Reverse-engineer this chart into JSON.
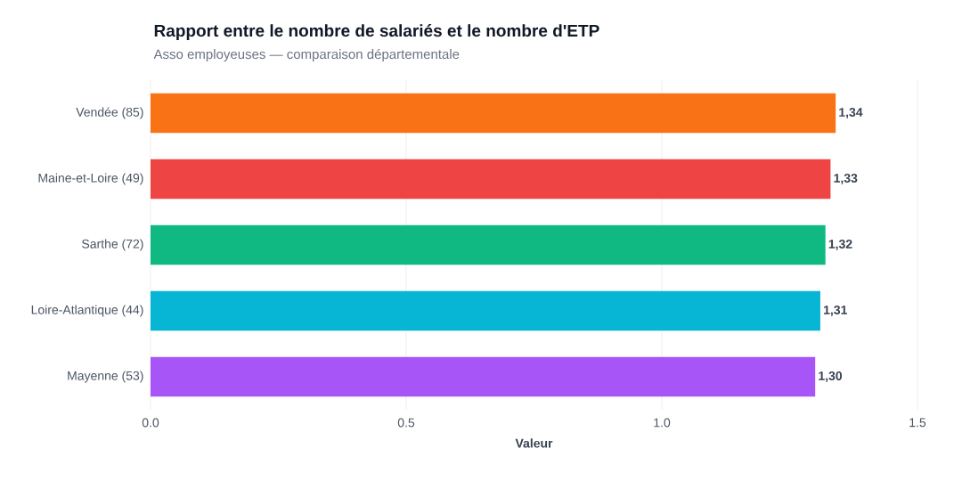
{
  "chart_data": {
    "type": "bar",
    "orientation": "horizontal",
    "title": "Rapport entre le nombre de salariés et le nombre d'ETP",
    "subtitle": "Asso employeuses — comparaison départementale",
    "xlabel": "Valeur",
    "categories": [
      "Vendée (85)",
      "Maine-et-Loire (49)",
      "Sarthe (72)",
      "Loire-Atlantique (44)",
      "Mayenne (53)"
    ],
    "values": [
      1.34,
      1.33,
      1.32,
      1.31,
      1.3
    ],
    "value_labels": [
      "1,34",
      "1,33",
      "1,32",
      "1,31",
      "1,30"
    ],
    "colors": [
      "#f97316",
      "#ef4444",
      "#10b981",
      "#06b6d4",
      "#a855f7"
    ],
    "xlim": [
      0,
      1.5
    ],
    "xticks": [
      {
        "value": 0,
        "label": "0.0"
      },
      {
        "value": 0.5,
        "label": "0.5"
      },
      {
        "value": 1.0,
        "label": "1.0"
      },
      {
        "value": 1.5,
        "label": "1.5"
      }
    ],
    "grid": "x"
  }
}
